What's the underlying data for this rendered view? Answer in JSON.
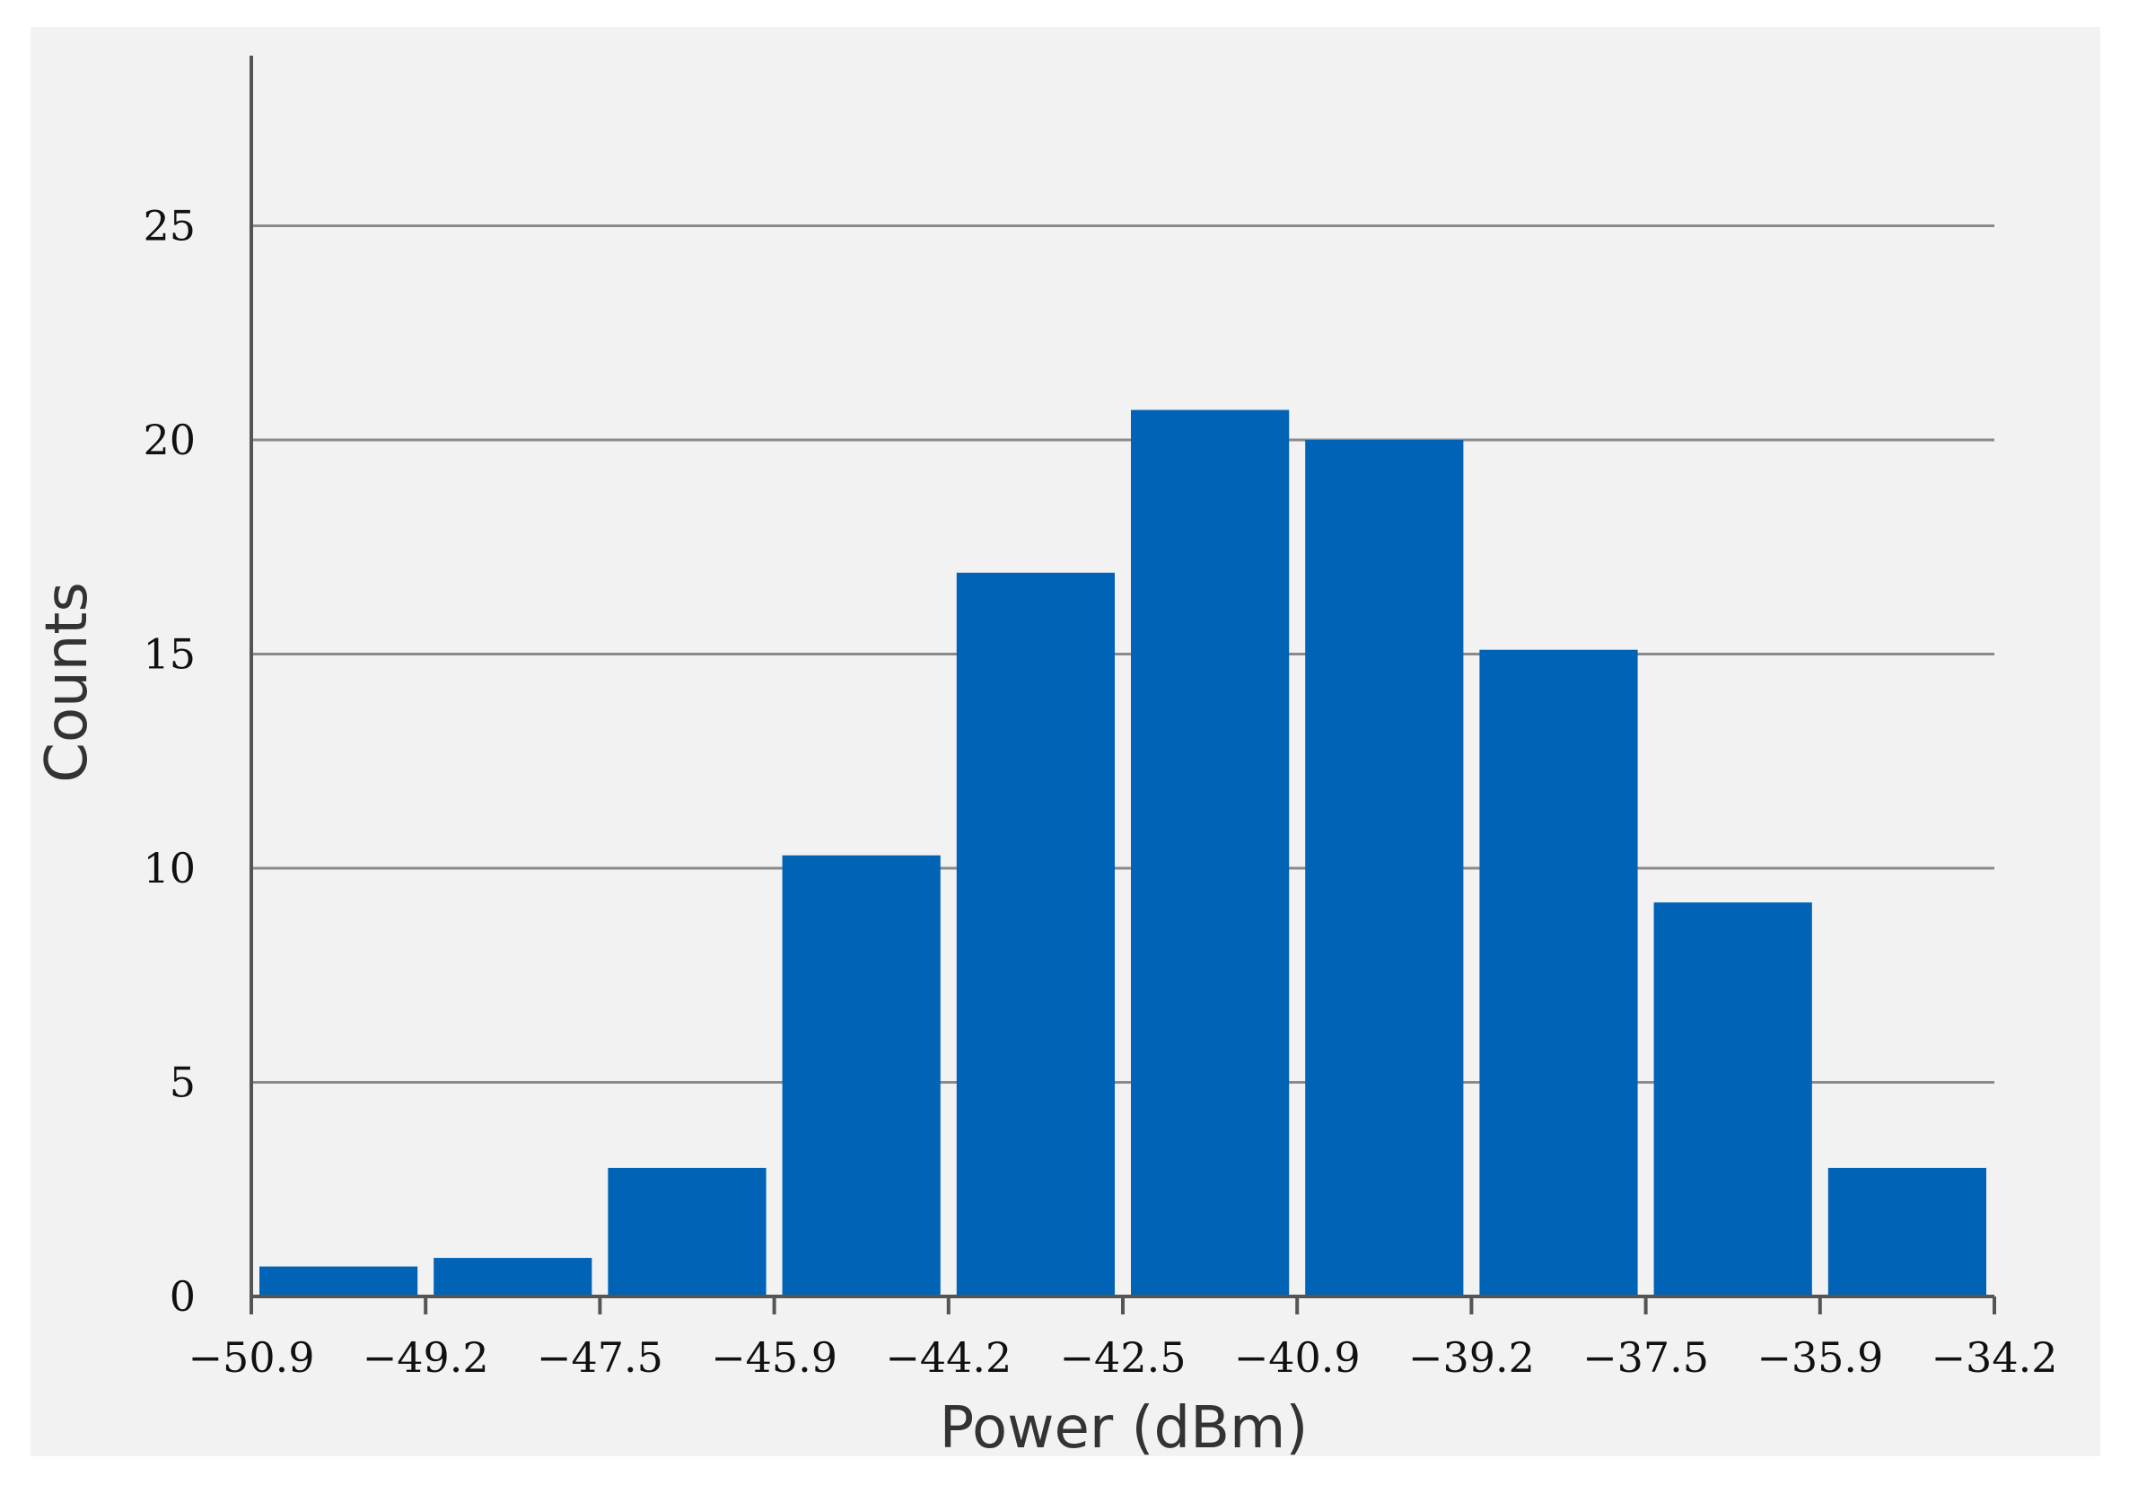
{
  "chart_data": {
    "type": "bar",
    "title": "",
    "xlabel": "Power (dBm)",
    "ylabel": "Counts",
    "x_ticks": [
      "−50.9",
      "−49.2",
      "−47.5",
      "−45.9",
      "−44.2",
      "−42.5",
      "−40.9",
      "−39.2",
      "−37.5",
      "−35.9",
      "−34.2"
    ],
    "y_ticks": [
      "0",
      "5",
      "10",
      "15",
      "20",
      "25"
    ],
    "ylim": [
      0,
      29
    ],
    "values": [
      0.7,
      0.9,
      3.0,
      10.3,
      16.9,
      20.7,
      20.0,
      15.1,
      9.2,
      3.0
    ],
    "grid": true,
    "colors": {
      "bar": "#0063b6",
      "background": "#f2f2f2",
      "grid": "#8a8a8a",
      "axis": "#555555"
    }
  }
}
